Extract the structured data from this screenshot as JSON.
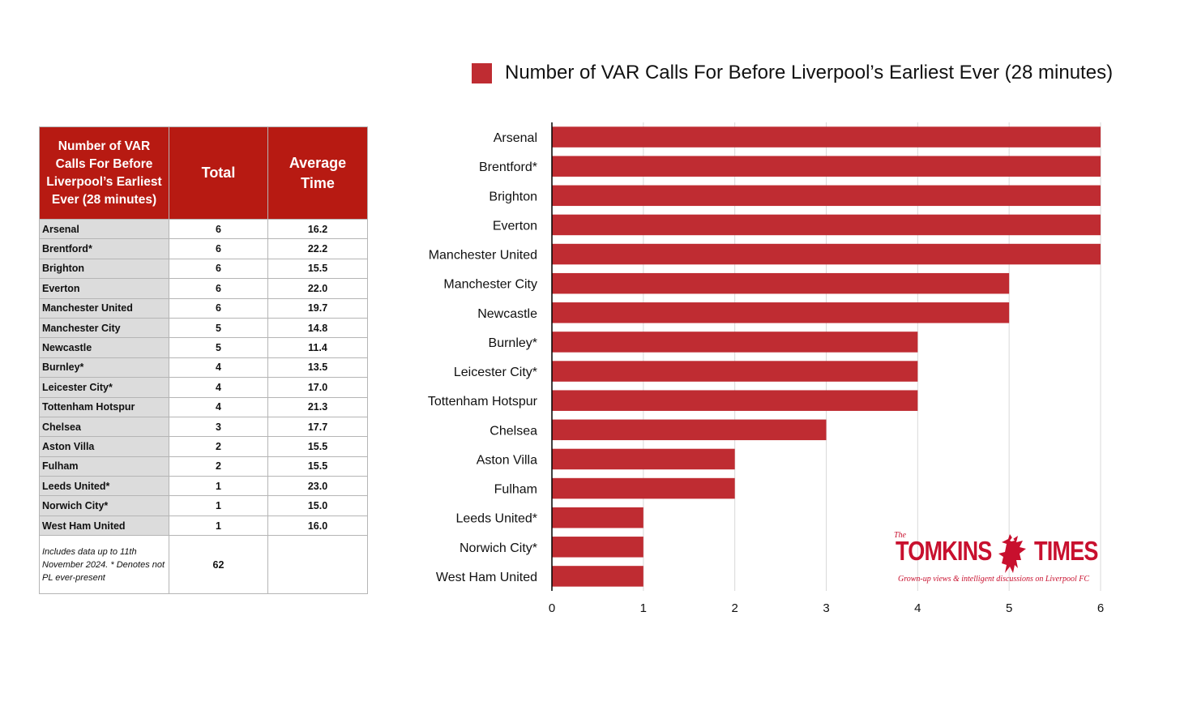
{
  "table": {
    "headers": [
      "Number of VAR Calls For Before Liverpool’s Earliest Ever (28 minutes)",
      "Total",
      "Average Time"
    ],
    "rows": [
      {
        "team": "Arsenal",
        "total": "6",
        "avg": "16.2"
      },
      {
        "team": "Brentford*",
        "total": "6",
        "avg": "22.2"
      },
      {
        "team": "Brighton",
        "total": "6",
        "avg": "15.5"
      },
      {
        "team": "Everton",
        "total": "6",
        "avg": "22.0"
      },
      {
        "team": "Manchester United",
        "total": "6",
        "avg": "19.7"
      },
      {
        "team": "Manchester City",
        "total": "5",
        "avg": "14.8"
      },
      {
        "team": "Newcastle",
        "total": "5",
        "avg": "11.4"
      },
      {
        "team": "Burnley*",
        "total": "4",
        "avg": "13.5"
      },
      {
        "team": "Leicester City*",
        "total": "4",
        "avg": "17.0"
      },
      {
        "team": "Tottenham Hotspur",
        "total": "4",
        "avg": "21.3"
      },
      {
        "team": "Chelsea",
        "total": "3",
        "avg": "17.7"
      },
      {
        "team": "Aston Villa",
        "total": "2",
        "avg": "15.5"
      },
      {
        "team": "Fulham",
        "total": "2",
        "avg": "15.5"
      },
      {
        "team": "Leeds United*",
        "total": "1",
        "avg": "23.0"
      },
      {
        "team": "Norwich City*",
        "total": "1",
        "avg": "15.0"
      },
      {
        "team": "West Ham United",
        "total": "1",
        "avg": "16.0"
      }
    ],
    "footer_note": "Includes data up to 11th November 2024.   * Denotes not PL ever-present",
    "footer_total": "62",
    "footer_avg": ""
  },
  "logo": {
    "the": "The",
    "word1": "TOMKINS",
    "word2": "TIMES",
    "tagline": "Grown-up views & intelligent discussions on Liverpool FC",
    "icon": "liverbird-icon",
    "color": "#c8102e"
  },
  "chart_data": {
    "type": "bar",
    "orientation": "horizontal",
    "categories": [
      "Arsenal",
      "Brentford*",
      "Brighton",
      "Everton",
      "Manchester United",
      "Manchester City",
      "Newcastle",
      "Burnley*",
      "Leicester City*",
      "Tottenham Hotspur",
      "Chelsea",
      "Aston Villa",
      "Fulham",
      "Leeds United*",
      "Norwich City*",
      "West Ham United"
    ],
    "series": [
      {
        "name": "Number of VAR Calls For Before Liverpool’s Earliest Ever (28 minutes)",
        "values": [
          6,
          6,
          6,
          6,
          6,
          5,
          5,
          4,
          4,
          4,
          3,
          2,
          2,
          1,
          1,
          1
        ],
        "color": "#bf2c32"
      }
    ],
    "xlim": [
      0,
      6
    ],
    "xticks": [
      0,
      1,
      2,
      3,
      4,
      5,
      6
    ],
    "grid": "vertical",
    "legend_position": "top",
    "title": "",
    "xlabel": "",
    "ylabel": ""
  }
}
